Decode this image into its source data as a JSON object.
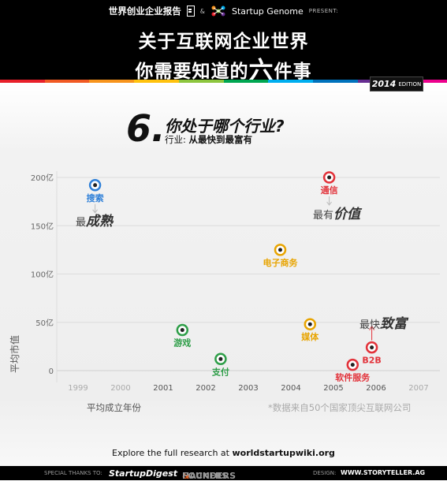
{
  "header": {
    "report_name": "世界创业企业报告",
    "amp": "&",
    "partner": "Startup Genome",
    "present": "PRESENT:",
    "title_line1": "关于互联网企业世界",
    "title_line2_pre": "你需要知道的",
    "title_line2_big": "六",
    "title_line2_post": "件事",
    "edition_year": "2014",
    "edition_label": "EDITION",
    "stripe_colors": [
      "#e8202a",
      "#f15a24",
      "#f7941d",
      "#ffc20e",
      "#8dc63f",
      "#00a651",
      "#00aeef",
      "#0072bc",
      "#662d91",
      "#ec008c"
    ]
  },
  "question": {
    "number": "6.",
    "title": "你处于哪个行业?",
    "subtitle_prefix": "行业:",
    "subtitle_rest": "从最快到最富有"
  },
  "chart_data": {
    "type": "scatter",
    "ylabel": "平均市值",
    "xlabel": "平均成立年份",
    "xlim": [
      1998.5,
      2007.5
    ],
    "ylim": [
      0,
      200
    ],
    "x_ticks": [
      "1999",
      "2000",
      "2001",
      "2002",
      "2003",
      "2004",
      "2005",
      "2006",
      "2007"
    ],
    "y_ticks": [
      {
        "value": 0,
        "label": "0"
      },
      {
        "value": 50,
        "label": "50亿"
      },
      {
        "value": 100,
        "label": "100亿"
      },
      {
        "value": 150,
        "label": "150亿"
      },
      {
        "value": 200,
        "label": "200亿"
      }
    ],
    "points": [
      {
        "label": "搜索",
        "x": 1999.4,
        "y": 192,
        "color": "#2f80d8",
        "label_pos": "below"
      },
      {
        "label": "通信",
        "x": 2004.9,
        "y": 200,
        "color": "#e2323a",
        "label_pos": "below"
      },
      {
        "label": "电子商务",
        "x": 2003.75,
        "y": 125,
        "color": "#e8a400",
        "label_pos": "below"
      },
      {
        "label": "游戏",
        "x": 2001.45,
        "y": 42,
        "color": "#2e9e48",
        "label_pos": "below"
      },
      {
        "label": "支付",
        "x": 2002.35,
        "y": 12,
        "color": "#2e9e48",
        "label_pos": "below"
      },
      {
        "label": "媒体",
        "x": 2004.45,
        "y": 48,
        "color": "#e8a400",
        "label_pos": "below"
      },
      {
        "label": "B2B",
        "x": 2005.9,
        "y": 24,
        "color": "#e2323a",
        "label_pos": "below"
      },
      {
        "label": "软件服务",
        "x": 2005.45,
        "y": 6,
        "color": "#e2323a",
        "label_pos": "below"
      }
    ],
    "source_note": "*数据来自50个国家顶尖互联网公司"
  },
  "notes": {
    "mature_pre": "最",
    "mature_em": "成熟",
    "valuable_pre": "最有",
    "valuable_em": "价值",
    "rich_pre": "最快",
    "rich_em": "致富"
  },
  "explore": {
    "pre": "Explore the full research at",
    "site": "worldstartupwiki.org"
  },
  "footer": {
    "thanks": "SPECIAL THANKS TO:",
    "sponsor1": "StartupDigest",
    "sponsor2_a": "HACKERS",
    "sponsor2_amp": "&",
    "sponsor2_b": "FOUNDERS",
    "design": "DESIGN:",
    "design_site": "WWW.STORYTELLER.AG"
  }
}
